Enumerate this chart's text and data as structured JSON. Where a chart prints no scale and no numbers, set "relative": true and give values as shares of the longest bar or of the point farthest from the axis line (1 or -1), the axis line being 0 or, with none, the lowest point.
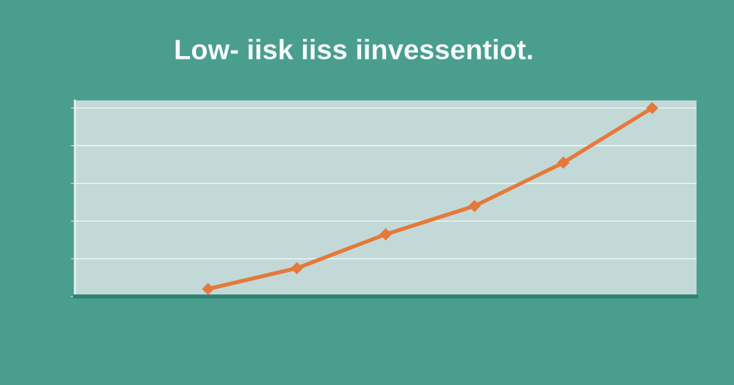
{
  "chart_data": {
    "type": "line",
    "title": "Low- iisk iiss iinvessentiot.",
    "categories": [
      null,
      null,
      null,
      null,
      null,
      null,
      null
    ],
    "relative": true,
    "series": [
      {
        "color": "#e5793b",
        "values": [
          null,
          0.04,
          0.15,
          0.33,
          0.48,
          0.71,
          1
        ]
      }
    ],
    "grid": "y",
    "marker": "diamond",
    "line_style": "solid"
  }
}
